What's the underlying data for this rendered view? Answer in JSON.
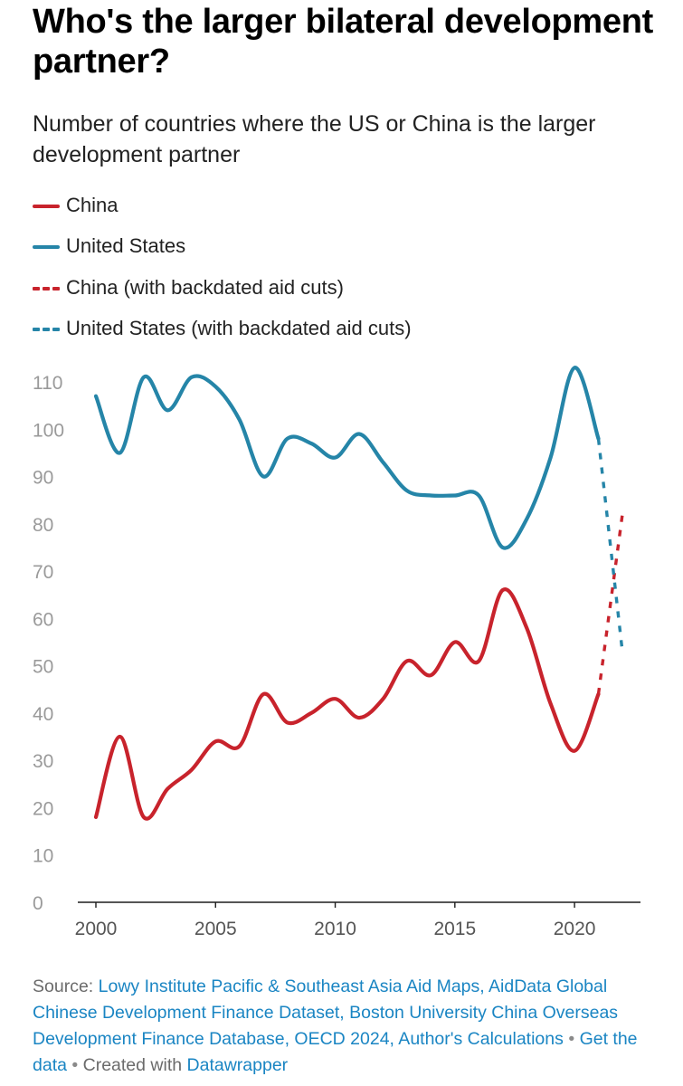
{
  "header": {
    "title": "Who's the larger bilateral development partner?",
    "subtitle": "Number of countries where the US or China is the larger development partner"
  },
  "legend": [
    {
      "label": "China",
      "color": "#c8232c",
      "style": "solid"
    },
    {
      "label": "United States",
      "color": "#2585a8",
      "style": "solid"
    },
    {
      "label": "China (with backdated aid cuts)",
      "color": "#c8232c",
      "style": "dashed"
    },
    {
      "label": "United States (with backdated aid cuts)",
      "color": "#2585a8",
      "style": "dashed"
    }
  ],
  "chart_data": {
    "type": "line",
    "title": "Who's the larger bilateral development partner?",
    "subtitle": "Number of countries where the US or China is the larger development partner",
    "xlabel": "",
    "ylabel": "",
    "xlim": [
      2000,
      2022
    ],
    "ylim": [
      0,
      110
    ],
    "x_ticks": [
      2000,
      2005,
      2010,
      2015,
      2020
    ],
    "y_ticks": [
      0,
      10,
      20,
      30,
      40,
      50,
      60,
      70,
      80,
      90,
      100,
      110
    ],
    "grid": false,
    "series": [
      {
        "name": "China",
        "color": "#c8232c",
        "style": "solid",
        "x": [
          2000,
          2001,
          2002,
          2003,
          2004,
          2005,
          2006,
          2007,
          2008,
          2009,
          2010,
          2011,
          2012,
          2013,
          2014,
          2015,
          2016,
          2017,
          2018,
          2019,
          2020,
          2021
        ],
        "y": [
          18,
          35,
          18,
          24,
          28,
          34,
          33,
          44,
          38,
          40,
          43,
          39,
          43,
          51,
          48,
          55,
          51,
          66,
          58,
          42,
          32,
          44
        ]
      },
      {
        "name": "United States",
        "color": "#2585a8",
        "style": "solid",
        "x": [
          2000,
          2001,
          2002,
          2003,
          2004,
          2005,
          2006,
          2007,
          2008,
          2009,
          2010,
          2011,
          2012,
          2013,
          2014,
          2015,
          2016,
          2017,
          2018,
          2019,
          2020,
          2021
        ],
        "y": [
          107,
          95,
          111,
          104,
          111,
          109,
          102,
          90,
          98,
          97,
          94,
          99,
          93,
          87,
          86,
          86,
          86,
          75,
          81,
          94,
          113,
          98
        ]
      },
      {
        "name": "China (with backdated aid cuts)",
        "color": "#c8232c",
        "style": "dashed",
        "x": [
          2021,
          2022
        ],
        "y": [
          44,
          82
        ]
      },
      {
        "name": "United States (with backdated aid cuts)",
        "color": "#2585a8",
        "style": "dashed",
        "x": [
          2021,
          2022
        ],
        "y": [
          98,
          53
        ]
      }
    ]
  },
  "footer": {
    "source_prefix": "Source:",
    "source_link": "Lowy Institute Pacific & Southeast Asia Aid Maps, AidData Global Chinese Development Finance Dataset, Boston University China Overseas Development Finance Database, OECD 2024, Author's Calculations",
    "separator": "•",
    "get_data": "Get the data",
    "created_with": "Created with",
    "tool": "Datawrapper"
  }
}
